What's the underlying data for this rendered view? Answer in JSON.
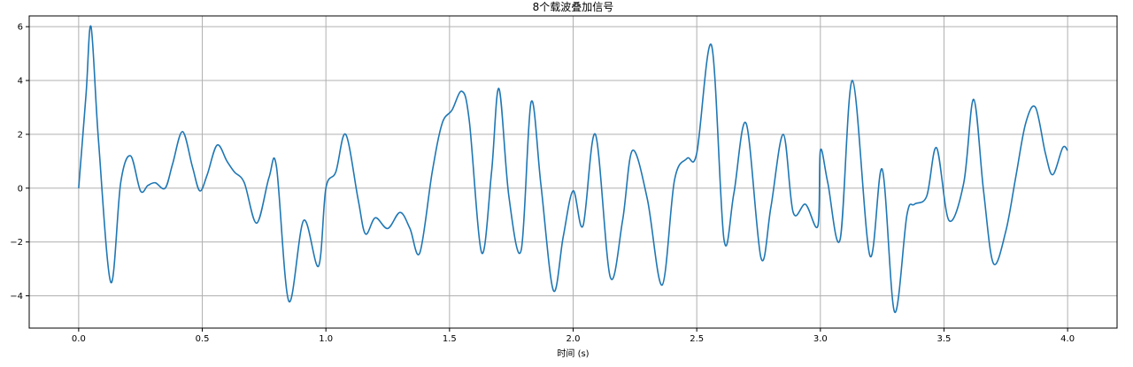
{
  "chart_data": {
    "type": "line",
    "title": "8个载波叠加信号",
    "xlabel": "时间 (s)",
    "ylabel": "",
    "xlim": [
      -0.2,
      4.2
    ],
    "ylim": [
      -5.2,
      6.4
    ],
    "xticks": [
      0.0,
      0.5,
      1.0,
      1.5,
      2.0,
      2.5,
      3.0,
      3.5,
      4.0
    ],
    "xtick_labels": [
      "0.0",
      "0.5",
      "1.0",
      "1.5",
      "2.0",
      "2.5",
      "3.0",
      "3.5",
      "4.0"
    ],
    "yticks": [
      -4,
      -2,
      0,
      2,
      4,
      6
    ],
    "ytick_labels": [
      "−4",
      "−2",
      "0",
      "2",
      "4",
      "6"
    ],
    "grid": true,
    "colors": {
      "line": "#1f77b4",
      "grid": "#b0b0b0",
      "axes": "#000000"
    },
    "series": [
      {
        "x": [
          0.0,
          0.03,
          0.05,
          0.08,
          0.13,
          0.17,
          0.21,
          0.25,
          0.28,
          0.31,
          0.35,
          0.38,
          0.42,
          0.46,
          0.49,
          0.52,
          0.56,
          0.6,
          0.63,
          0.67,
          0.72,
          0.77,
          0.8,
          0.85,
          0.91,
          0.97,
          1.0,
          1.04,
          1.08,
          1.13,
          1.16,
          1.2,
          1.25,
          1.3,
          1.34,
          1.38,
          1.43,
          1.47,
          1.51,
          1.55,
          1.58,
          1.63,
          1.67,
          1.7,
          1.74,
          1.79,
          1.83,
          1.87,
          1.92,
          1.96,
          2.0,
          2.04,
          2.09,
          2.15,
          2.2,
          2.24,
          2.3,
          2.36,
          2.41,
          2.46,
          2.5,
          2.56,
          2.61,
          2.65,
          2.7,
          2.76,
          2.8,
          2.85,
          2.89,
          2.94,
          2.99,
          3.0,
          3.03,
          3.08,
          3.13,
          3.2,
          3.25,
          3.3,
          3.35,
          3.38,
          3.43,
          3.47,
          3.52,
          3.58,
          3.62,
          3.66,
          3.7,
          3.75,
          3.79,
          3.83,
          3.87,
          3.91,
          3.94,
          3.98,
          4.0
        ],
        "y": [
          0.0,
          3.5,
          6.0,
          1.8,
          -3.5,
          0.2,
          1.2,
          -0.1,
          0.1,
          0.2,
          0.0,
          0.9,
          2.1,
          0.8,
          -0.1,
          0.5,
          1.6,
          1.0,
          0.6,
          0.2,
          -1.3,
          0.4,
          0.8,
          -4.2,
          -1.2,
          -2.9,
          0.0,
          0.6,
          2.0,
          -0.4,
          -1.7,
          -1.1,
          -1.5,
          -0.9,
          -1.5,
          -2.4,
          0.6,
          2.4,
          2.9,
          3.6,
          2.5,
          -2.4,
          0.6,
          3.7,
          -0.3,
          -2.3,
          3.2,
          0.1,
          -3.8,
          -1.8,
          -0.1,
          -1.4,
          2.0,
          -3.3,
          -1.2,
          1.4,
          -0.4,
          -3.6,
          0.3,
          1.1,
          1.3,
          5.3,
          -1.9,
          -0.2,
          2.4,
          -2.6,
          -0.7,
          2.0,
          -0.9,
          -0.6,
          -1.4,
          1.4,
          0.2,
          -1.9,
          4.0,
          -2.5,
          0.7,
          -4.6,
          -1.0,
          -0.6,
          -0.3,
          1.5,
          -1.2,
          0.2,
          3.3,
          -0.1,
          -2.8,
          -1.6,
          0.4,
          2.4,
          3.0,
          1.3,
          0.5,
          1.5,
          1.4
        ]
      }
    ]
  }
}
